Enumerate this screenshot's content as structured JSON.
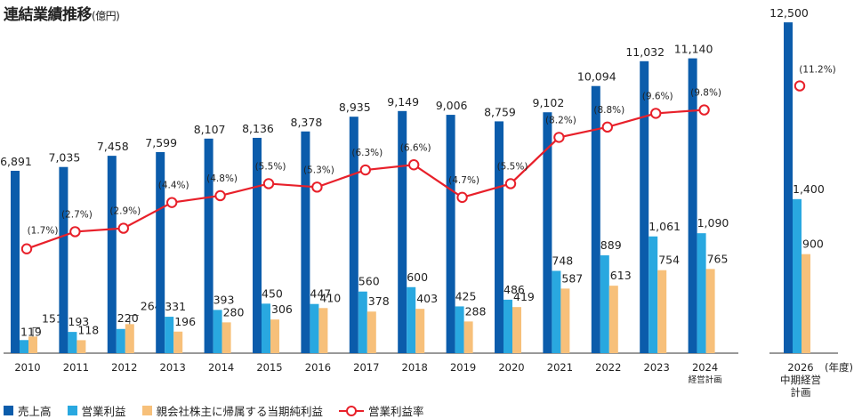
{
  "title": "連結業績推移",
  "title_unit": "(億円)",
  "year_unit": "(年度)",
  "colors": {
    "sales": "#0b5cab",
    "op": "#29a8e0",
    "net": "#f7c07a",
    "rate": "#e8202a"
  },
  "chart_data": {
    "type": "bar",
    "title": "連結業績推移",
    "unit": "億円",
    "categories": [
      "2010",
      "2011",
      "2012",
      "2013",
      "2014",
      "2015",
      "2016",
      "2017",
      "2018",
      "2019",
      "2020",
      "2021",
      "2022",
      "2023",
      "2024",
      "2026"
    ],
    "category_sublabels": [
      "",
      "",
      "",
      "",
      "",
      "",
      "",
      "",
      "",
      "",
      "",
      "",
      "",
      "",
      "経営計画",
      "中期経営計画"
    ],
    "series": [
      {
        "name": "売上高",
        "values": [
          6891,
          7035,
          7458,
          7599,
          8107,
          8136,
          8378,
          8935,
          9149,
          9006,
          8759,
          9102,
          10094,
          11032,
          11140,
          12500
        ],
        "labels": [
          "6,891",
          "7,035",
          "7,458",
          "7,599",
          "8,107",
          "8,136",
          "8,378",
          "8,935",
          "9,149",
          "9,006",
          "8,759",
          "9,102",
          "10,094",
          "11,032",
          "11,140",
          "12,500"
        ]
      },
      {
        "name": "営業利益",
        "values": [
          119,
          193,
          220,
          331,
          393,
          450,
          447,
          560,
          600,
          425,
          486,
          748,
          889,
          1061,
          1090,
          1400
        ],
        "labels": [
          "119",
          "193",
          "220",
          "331",
          "393",
          "450",
          "447",
          "560",
          "600",
          "425",
          "486",
          "748",
          "889",
          "1,061",
          "1,090",
          "1,400"
        ]
      },
      {
        "name": "親会社株主に帰属する当期純利益",
        "values": [
          151,
          118,
          264,
          196,
          280,
          306,
          410,
          378,
          403,
          288,
          419,
          587,
          613,
          754,
          765,
          900
        ],
        "labels": [
          "151",
          "118",
          "264",
          "196",
          "280",
          "306",
          "410",
          "378",
          "403",
          "288",
          "419",
          "587",
          "613",
          "754",
          "765",
          "900"
        ]
      },
      {
        "name": "営業利益率",
        "type": "line",
        "values": [
          1.7,
          2.7,
          2.9,
          4.4,
          4.8,
          5.5,
          5.3,
          6.3,
          6.6,
          4.7,
          5.5,
          8.2,
          8.8,
          9.6,
          9.8,
          11.2
        ],
        "labels": [
          "(1.7%)",
          "(2.7%)",
          "(2.9%)",
          "(4.4%)",
          "(4.8%)",
          "(5.5%)",
          "(5.3%)",
          "(6.3%)",
          "(6.6%)",
          "(4.7%)",
          "(5.5%)",
          "(8.2%)",
          "(8.8%)",
          "(9.6%)",
          "(9.8%)",
          "(11.2%)"
        ]
      }
    ],
    "legend_position": "bottom-left"
  }
}
